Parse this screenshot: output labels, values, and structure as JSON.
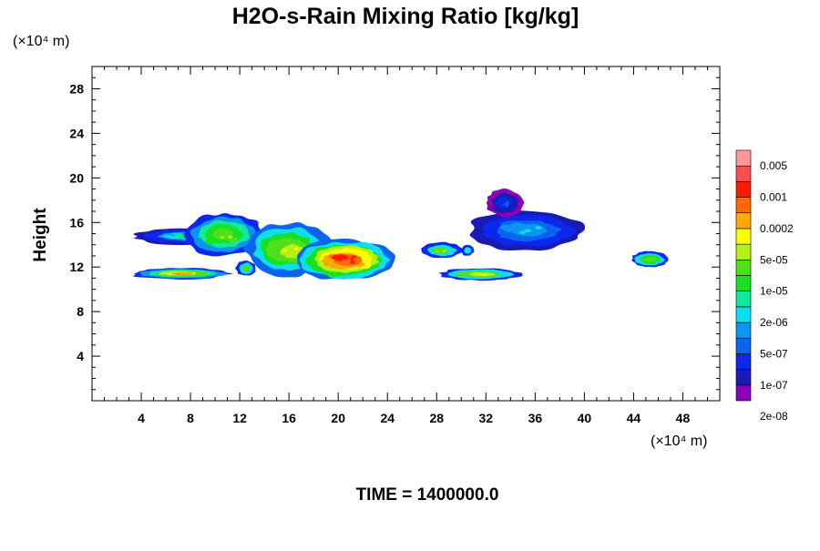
{
  "chart_data": {
    "type": "heatmap",
    "title": "H2O-s-Rain Mixing Ratio [kg/kg]",
    "ylabel": "Height",
    "y_unit_label": "(×10⁴ m)",
    "x_unit_label": "(×10⁴ m)",
    "footer": "TIME = 1400000.0",
    "xlim": [
      0,
      51
    ],
    "ylim": [
      0,
      30
    ],
    "xticks": [
      4,
      8,
      12,
      16,
      20,
      24,
      28,
      32,
      36,
      40,
      44,
      48
    ],
    "yticks": [
      4,
      8,
      12,
      16,
      20,
      24,
      28
    ],
    "grid": false,
    "colorbar": {
      "placement": "right",
      "labels": [
        "0.005",
        "0.001",
        "0.0002",
        "5e-05",
        "1e-05",
        "2e-06",
        "5e-07",
        "1e-07",
        "2e-08"
      ],
      "colors": [
        "#8a00b8",
        "#1a1ab4",
        "#0a28f0",
        "#0a64f0",
        "#0a96f0",
        "#0ae0f0",
        "#10e89a",
        "#1ae024",
        "#50e01a",
        "#b4f014",
        "#ffff00",
        "#ffaa00",
        "#ff6a00",
        "#ff1a00",
        "#ff5050",
        "#ff9a9a"
      ]
    },
    "cloud_regions": [
      {
        "x": [
          3.2,
          11.2
        ],
        "y": [
          10.9,
          11.9
        ],
        "levels": [
          2,
          4,
          6,
          8,
          9,
          11
        ]
      },
      {
        "x": [
          3.5,
          12.0
        ],
        "y": [
          14.0,
          15.5
        ],
        "levels": [
          1,
          2,
          4,
          6
        ]
      },
      {
        "x": [
          7.5,
          14.0
        ],
        "y": [
          13.0,
          16.8
        ],
        "levels": [
          2,
          4,
          6,
          7,
          8
        ]
      },
      {
        "x": [
          12.5,
          19.5
        ],
        "y": [
          11.2,
          16.0
        ],
        "levels": [
          3,
          5,
          7,
          8,
          9
        ]
      },
      {
        "x": [
          16.5,
          24.5
        ],
        "y": [
          10.8,
          14.5
        ],
        "levels": [
          3,
          5,
          7,
          9,
          10,
          11,
          12,
          13
        ]
      },
      {
        "x": [
          11.7,
          13.3
        ],
        "y": [
          11.2,
          12.6
        ],
        "levels": [
          2,
          5,
          8
        ]
      },
      {
        "x": [
          26.8,
          30.0
        ],
        "y": [
          12.8,
          14.2
        ],
        "levels": [
          2,
          5,
          8
        ]
      },
      {
        "x": [
          30.0,
          31.0
        ],
        "y": [
          13.0,
          14.0
        ],
        "levels": [
          2,
          5
        ]
      },
      {
        "x": [
          28.3,
          34.8
        ],
        "y": [
          10.8,
          11.9
        ],
        "levels": [
          2,
          5,
          8,
          9
        ]
      },
      {
        "x": [
          30.5,
          40.0
        ],
        "y": [
          13.5,
          17.0
        ],
        "levels": [
          1,
          2,
          3,
          4
        ]
      },
      {
        "x": [
          32.0,
          35.0
        ],
        "y": [
          16.5,
          19.0
        ],
        "levels": [
          0,
          1,
          2
        ]
      },
      {
        "x": [
          43.8,
          46.8
        ],
        "y": [
          12.0,
          13.4
        ],
        "levels": [
          2,
          5,
          7,
          8
        ]
      }
    ]
  }
}
